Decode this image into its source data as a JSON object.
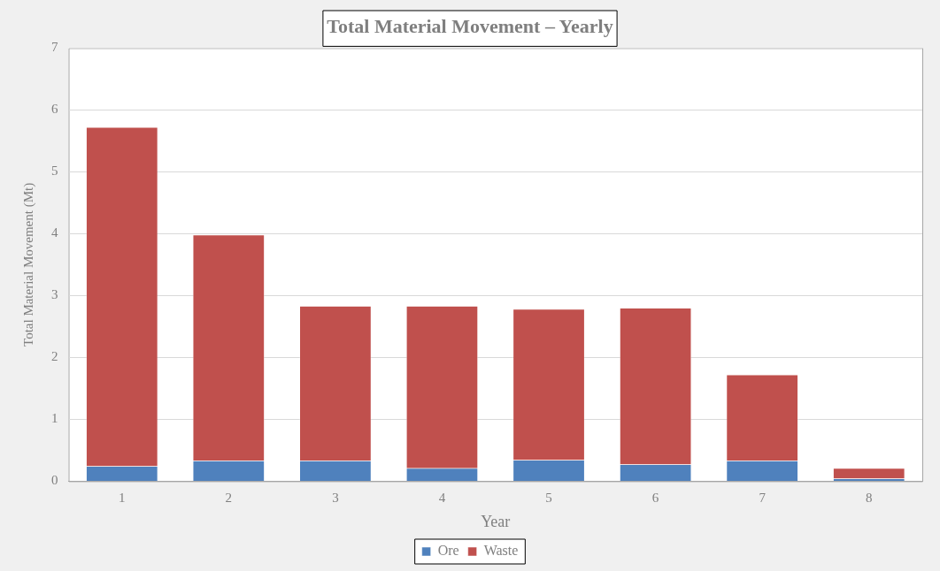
{
  "chart_data": {
    "type": "bar",
    "title": "Total Material Movement – Yearly",
    "xlabel": "Year",
    "ylabel": "Total Material Movement (Mt)",
    "categories": [
      "1",
      "2",
      "3",
      "4",
      "5",
      "6",
      "7",
      "8"
    ],
    "series": [
      {
        "name": "Ore",
        "color": "#4f81bd",
        "values": [
          0.24,
          0.33,
          0.33,
          0.21,
          0.34,
          0.27,
          0.33,
          0.04
        ]
      },
      {
        "name": "Waste",
        "color": "#c0504d",
        "values": [
          5.48,
          3.65,
          2.5,
          2.62,
          2.44,
          2.53,
          1.39,
          0.17
        ]
      }
    ],
    "stacked": true,
    "ylim": [
      0,
      7
    ],
    "yticks": [
      0,
      1,
      2,
      3,
      4,
      5,
      6,
      7
    ],
    "grid": "y",
    "legend": "bottom"
  }
}
